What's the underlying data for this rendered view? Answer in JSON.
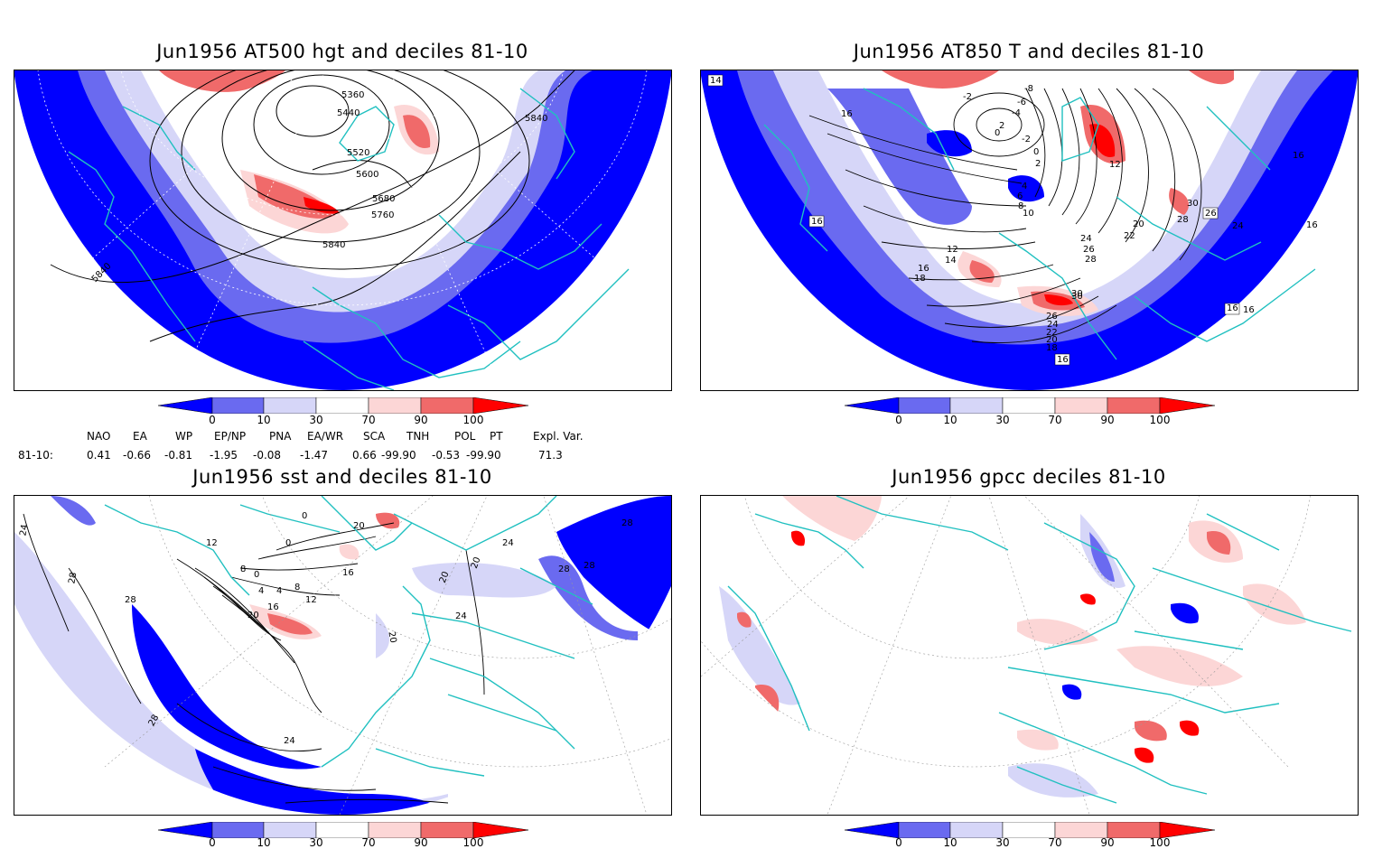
{
  "panels": {
    "z500": {
      "title": "Jun1956 AT500 hgt and deciles 81-10",
      "contour_labels": [
        "5360",
        "5440",
        "5520",
        "5600",
        "5680",
        "5760",
        "5840",
        "5840",
        "5840"
      ]
    },
    "t850": {
      "title": "Jun1956 AT850 T and deciles 81-10",
      "contour_labels": [
        "14",
        "16",
        "16",
        "16",
        "16",
        "-2",
        "-8",
        "-6",
        "-4",
        "2",
        "-2",
        "0",
        "0",
        "2",
        "4",
        "6",
        "8",
        "10",
        "12",
        "30",
        "28",
        "26",
        "24",
        "20",
        "22",
        "24",
        "26",
        "28",
        "30",
        "26",
        "24",
        "22",
        "20",
        "18",
        "16",
        "18",
        "16",
        "14",
        "12",
        "16",
        "16",
        "30"
      ]
    },
    "sst": {
      "title": "Jun1956 sst and deciles 81-10",
      "contour_labels": [
        "24",
        "28",
        "28",
        "12",
        "8",
        "4",
        "0",
        "16",
        "20",
        "4",
        "8",
        "12",
        "16",
        "0",
        "0",
        "20",
        "24",
        "28",
        "24",
        "28",
        "20",
        "20",
        "20",
        "24",
        "28",
        "28"
      ]
    },
    "gpcc": {
      "title": "Jun1956 gpcc deciles 81-10"
    }
  },
  "colorbar": {
    "labels": [
      "0",
      "10",
      "30",
      "70",
      "90",
      "100"
    ],
    "colors": [
      "#0000ff",
      "#6a6af0",
      "#d6d6f8",
      "#ffffff",
      "#fcd6d6",
      "#f06a6a",
      "#ff0000"
    ]
  },
  "indices": {
    "headers": [
      "NAO",
      "EA",
      "WP",
      "EP/NP",
      "PNA",
      "EA/WR",
      "SCA",
      "TNH",
      "POL",
      "PT",
      "Expl. Var."
    ],
    "row_label": "81-10:",
    "values": [
      "0.41",
      "-0.66",
      "-0.81",
      "-1.95",
      "-0.08",
      "-1.47",
      "0.66",
      "-99.90",
      "-0.53",
      "-99.90",
      "71.3"
    ]
  }
}
